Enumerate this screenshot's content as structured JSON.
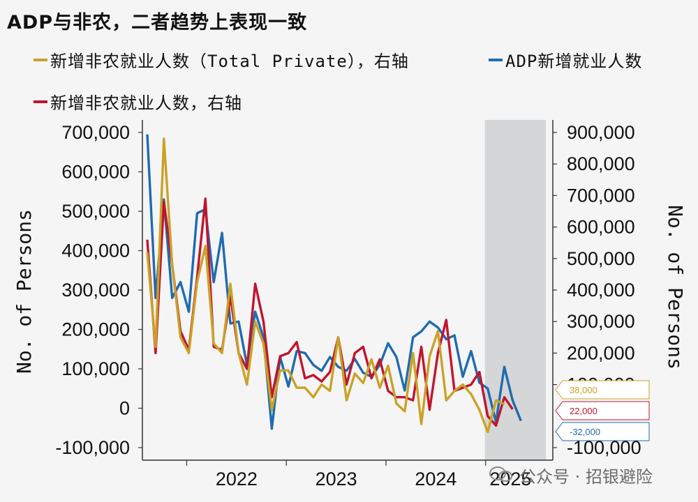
{
  "title": "ADP与非农，二者趋势上表现一致",
  "legend": [
    {
      "label": "新增非农就业人数（Total Private），右轴",
      "color": "#c9a227"
    },
    {
      "label": "ADP新增就业人数",
      "color": "#1f6bb0"
    },
    {
      "label": "新增非农就业人数，右轴",
      "color": "#c0152f"
    }
  ],
  "watermark": "公众号 · 招银避险",
  "chart_data": {
    "type": "line",
    "x_tick_labels": [
      "2022",
      "2023",
      "2024",
      "2025"
    ],
    "ylabel_left": "No. of Persons",
    "ylabel_right": "No. of Persons",
    "ylim_left": [
      -100000,
      700000
    ],
    "ylim_right": [
      -100000,
      900000
    ],
    "yticks_left": [
      "700,000",
      "600,000",
      "500,000",
      "400,000",
      "300,000",
      "200,000",
      "100,000",
      "0",
      "-100,000"
    ],
    "yticks_right": [
      "900,000",
      "800,000",
      "700,000",
      "600,000",
      "500,000",
      "400,000",
      "300,000",
      "200,000",
      "100,000",
      "-100,000"
    ],
    "shaded_period": "2025",
    "x": [
      "2021-08",
      "2021-09",
      "2021-10",
      "2021-11",
      "2021-12",
      "2022-01",
      "2022-02",
      "2022-03",
      "2022-04",
      "2022-05",
      "2022-06",
      "2022-07",
      "2022-08",
      "2022-09",
      "2022-10",
      "2022-11",
      "2022-12",
      "2023-01",
      "2023-02",
      "2023-03",
      "2023-04",
      "2023-05",
      "2023-06",
      "2023-07",
      "2023-08",
      "2023-09",
      "2023-10",
      "2023-11",
      "2023-12",
      "2024-01",
      "2024-02",
      "2024-03",
      "2024-04",
      "2024-05",
      "2024-06",
      "2024-07",
      "2024-08",
      "2024-09",
      "2024-10",
      "2024-11",
      "2024-12",
      "2025-01",
      "2025-02",
      "2025-03",
      "2025-04",
      "2025-05",
      "2025-06",
      "2025-07",
      "2025-08"
    ],
    "series": [
      {
        "name": "ADP新增就业人数",
        "axis": "left",
        "color": "#1f6bb0",
        "values": [
          695000,
          280000,
          530000,
          280000,
          320000,
          245000,
          495000,
          505000,
          320000,
          445000,
          215000,
          220000,
          110000,
          245000,
          180000,
          -52000,
          130000,
          55000,
          145000,
          140000,
          110000,
          95000,
          130000,
          105000,
          95000,
          125000,
          90000,
          80000,
          110000,
          165000,
          130000,
          45000,
          180000,
          195000,
          220000,
          205000,
          175000,
          185000,
          80000,
          145000,
          65000,
          50000,
          -35000,
          105000,
          20000,
          -32000,
          null,
          null,
          null
        ],
        "end_label": "-32,000"
      },
      {
        "name": "新增非农就业人数（Total Private），右轴",
        "axis": "right",
        "color": "#c9a227",
        "values": [
          520000,
          220000,
          880000,
          480000,
          250000,
          200000,
          425000,
          540000,
          230000,
          200000,
          420000,
          200000,
          100000,
          300000,
          230000,
          20000,
          145000,
          145000,
          90000,
          90000,
          60000,
          100000,
          80000,
          250000,
          50000,
          135000,
          105000,
          180000,
          90000,
          160000,
          40000,
          15000,
          200000,
          -25000,
          190000,
          270000,
          50000,
          80000,
          100000,
          70000,
          20000,
          -50000,
          50000,
          38000,
          null,
          null,
          null,
          null,
          null
        ],
        "end_label": "38,000"
      },
      {
        "name": "新增非农就业人数，右轴",
        "axis": "right",
        "color": "#c0152f",
        "values": [
          560000,
          200000,
          680000,
          480000,
          270000,
          210000,
          440000,
          690000,
          220000,
          210000,
          380000,
          200000,
          150000,
          420000,
          300000,
          60000,
          190000,
          200000,
          235000,
          120000,
          130000,
          110000,
          140000,
          250000,
          100000,
          200000,
          220000,
          120000,
          180000,
          80000,
          60000,
          60000,
          50000,
          220000,
          20000,
          200000,
          305000,
          80000,
          90000,
          100000,
          140000,
          0,
          -30000,
          60000,
          22000,
          null,
          null,
          null,
          null
        ],
        "end_label": "22,000"
      }
    ]
  }
}
